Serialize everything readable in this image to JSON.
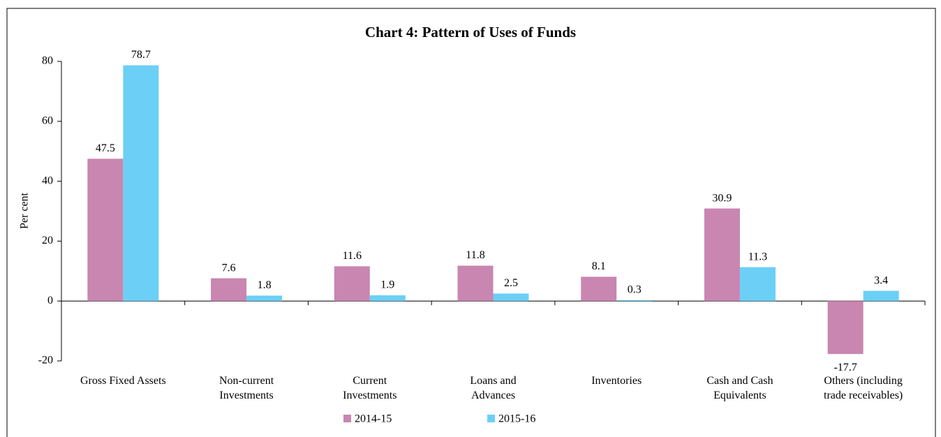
{
  "chart_data": {
    "type": "bar",
    "title": "Chart 4: Pattern of Uses of Funds",
    "y_label": "Per cent",
    "categories": [
      "Gross Fixed Assets",
      "Non-current\nInvestments",
      "Current\nInvestments",
      "Loans and\nAdvances",
      "Inventories",
      "Cash and Cash\nEquivalents",
      "Others (including\ntrade receivables)"
    ],
    "series": [
      {
        "name": "2014-15",
        "color": "#c886b0",
        "values": [
          47.5,
          7.6,
          11.6,
          11.8,
          8.1,
          30.9,
          -17.7
        ]
      },
      {
        "name": "2015-16",
        "color": "#6ccff6",
        "values": [
          78.7,
          1.8,
          1.9,
          2.5,
          0.3,
          11.3,
          3.4
        ]
      }
    ],
    "ylim": [
      -20,
      80
    ],
    "yticks": [
      -20,
      0,
      20,
      40,
      60,
      80
    ],
    "grid": false,
    "legend": "bottom"
  }
}
